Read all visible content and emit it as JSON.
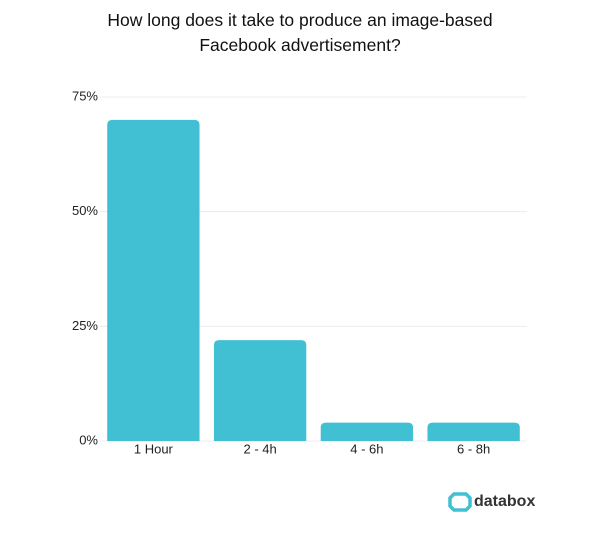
{
  "chart_data": {
    "type": "bar",
    "title": "How long does it take to produce an image-based Facebook advertisement?",
    "categories": [
      "1 Hour",
      "2 - 4h",
      "4 - 6h",
      "6 - 8h"
    ],
    "values": [
      70,
      22,
      4,
      4
    ],
    "color": "#41c0d4",
    "ylim": [
      0,
      75
    ],
    "yticks": [
      {
        "value": 0,
        "label": "0%"
      },
      {
        "value": 25,
        "label": "25%"
      },
      {
        "value": 50,
        "label": "50%"
      },
      {
        "value": 75,
        "label": "75%"
      }
    ],
    "grid": true,
    "branding": "databox"
  }
}
